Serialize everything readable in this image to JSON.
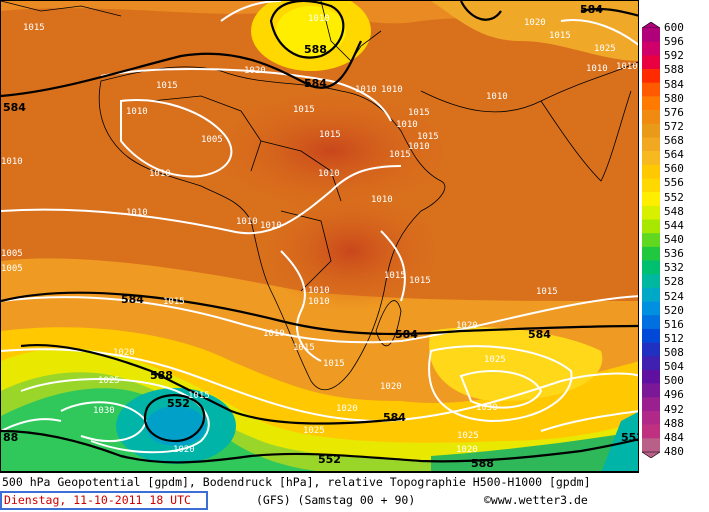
{
  "map": {
    "title": "500 hPa Geopotential [gpdm], Bodendruck [hPa], relative Topographie H500-H1000 [gpdm]",
    "datetime": "Dienstag, 11-10-2011   18 UTC",
    "run": "(GFS)  (Samstag 00 + 90)",
    "copyright": "©www.wetter3.de",
    "pressure_labels": [
      "1010",
      "1015",
      "1020",
      "1025",
      "1030",
      "1005"
    ],
    "geopotential_labels": [
      "584",
      "588",
      "552"
    ],
    "legend": {
      "values": [
        "600",
        "596",
        "592",
        "588",
        "584",
        "580",
        "576",
        "572",
        "568",
        "564",
        "560",
        "556",
        "552",
        "548",
        "544",
        "540",
        "536",
        "532",
        "528",
        "524",
        "520",
        "516",
        "512",
        "508",
        "504",
        "500",
        "496",
        "492",
        "488",
        "484",
        "480"
      ],
      "colors": [
        "#b0007a",
        "#d0006a",
        "#e80040",
        "#ff2a00",
        "#ff5a00",
        "#ff7a00",
        "#f08a10",
        "#e89a18",
        "#f2a820",
        "#f8b820",
        "#ffc800",
        "#ffd800",
        "#ffee00",
        "#d8f000",
        "#a8e800",
        "#60d820",
        "#20c840",
        "#00c070",
        "#00b8a0",
        "#00a8c8",
        "#0090e0",
        "#0070e0",
        "#0048d8",
        "#2030c0",
        "#4020b0",
        "#6010a0",
        "#7a1898",
        "#9a2090",
        "#b02888",
        "#c03080",
        "#b86088"
      ]
    }
  }
}
